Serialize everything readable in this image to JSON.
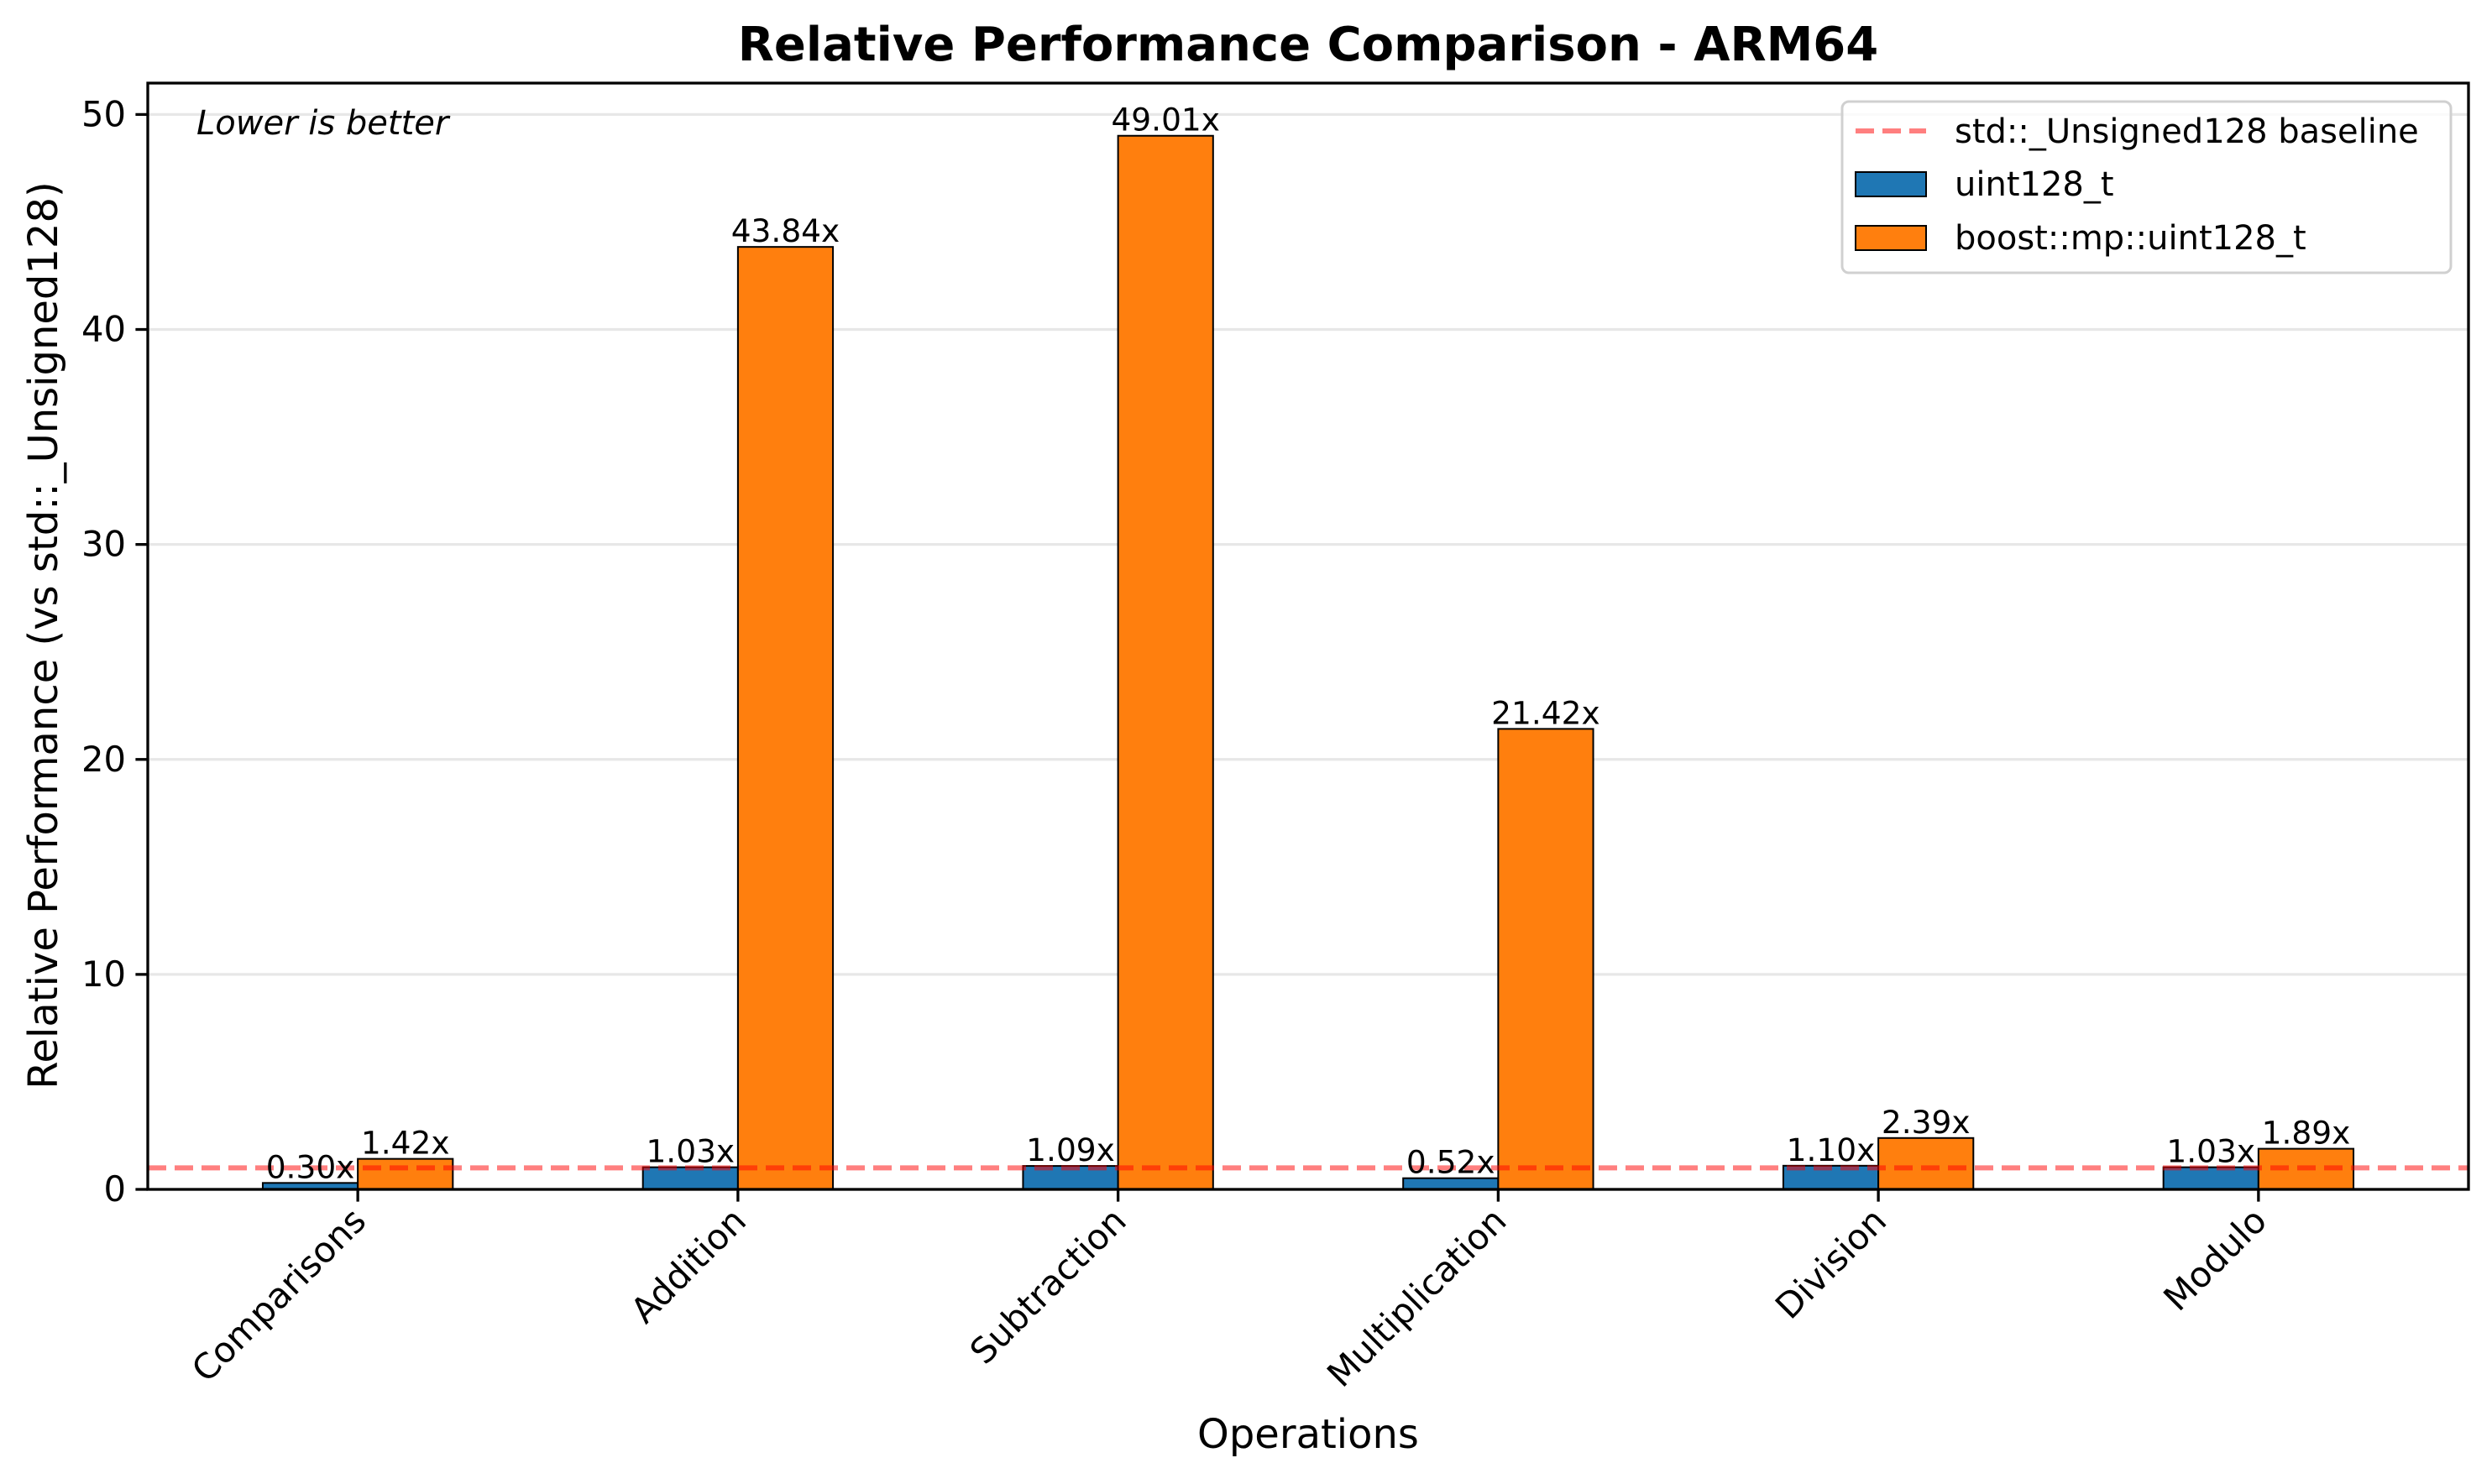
{
  "chart_data": {
    "type": "bar",
    "title": "Relative Performance Comparison - ARM64",
    "xlabel": "Operations",
    "ylabel": "Relative Performance (vs std::_Unsigned128)",
    "annotation": "Lower is better",
    "categories": [
      "Comparisons",
      "Addition",
      "Subtraction",
      "Multiplication",
      "Division",
      "Modulo"
    ],
    "series": [
      {
        "name": "uint128_t",
        "color": "#1f77b4",
        "values": [
          0.3,
          1.03,
          1.09,
          0.52,
          1.1,
          1.03
        ],
        "labels": [
          "0.30x",
          "1.03x",
          "1.09x",
          "0.52x",
          "1.10x",
          "1.03x"
        ]
      },
      {
        "name": "boost::mp::uint128_t",
        "color": "#ff7f0e",
        "values": [
          1.42,
          43.84,
          49.01,
          21.42,
          2.39,
          1.89
        ],
        "labels": [
          "1.42x",
          "43.84x",
          "49.01x",
          "21.42x",
          "2.39x",
          "1.89x"
        ]
      }
    ],
    "baseline": {
      "name": "std::_Unsigned128 baseline",
      "value": 1,
      "color": "#ff0000",
      "style": "dashed"
    },
    "ylim": [
      0,
      51.46
    ],
    "yticks": [
      0,
      10,
      20,
      30,
      40,
      50
    ],
    "ytick_labels": [
      "0",
      "10",
      "20",
      "30",
      "40",
      "50"
    ],
    "grid": "y",
    "legend": "top-right"
  }
}
